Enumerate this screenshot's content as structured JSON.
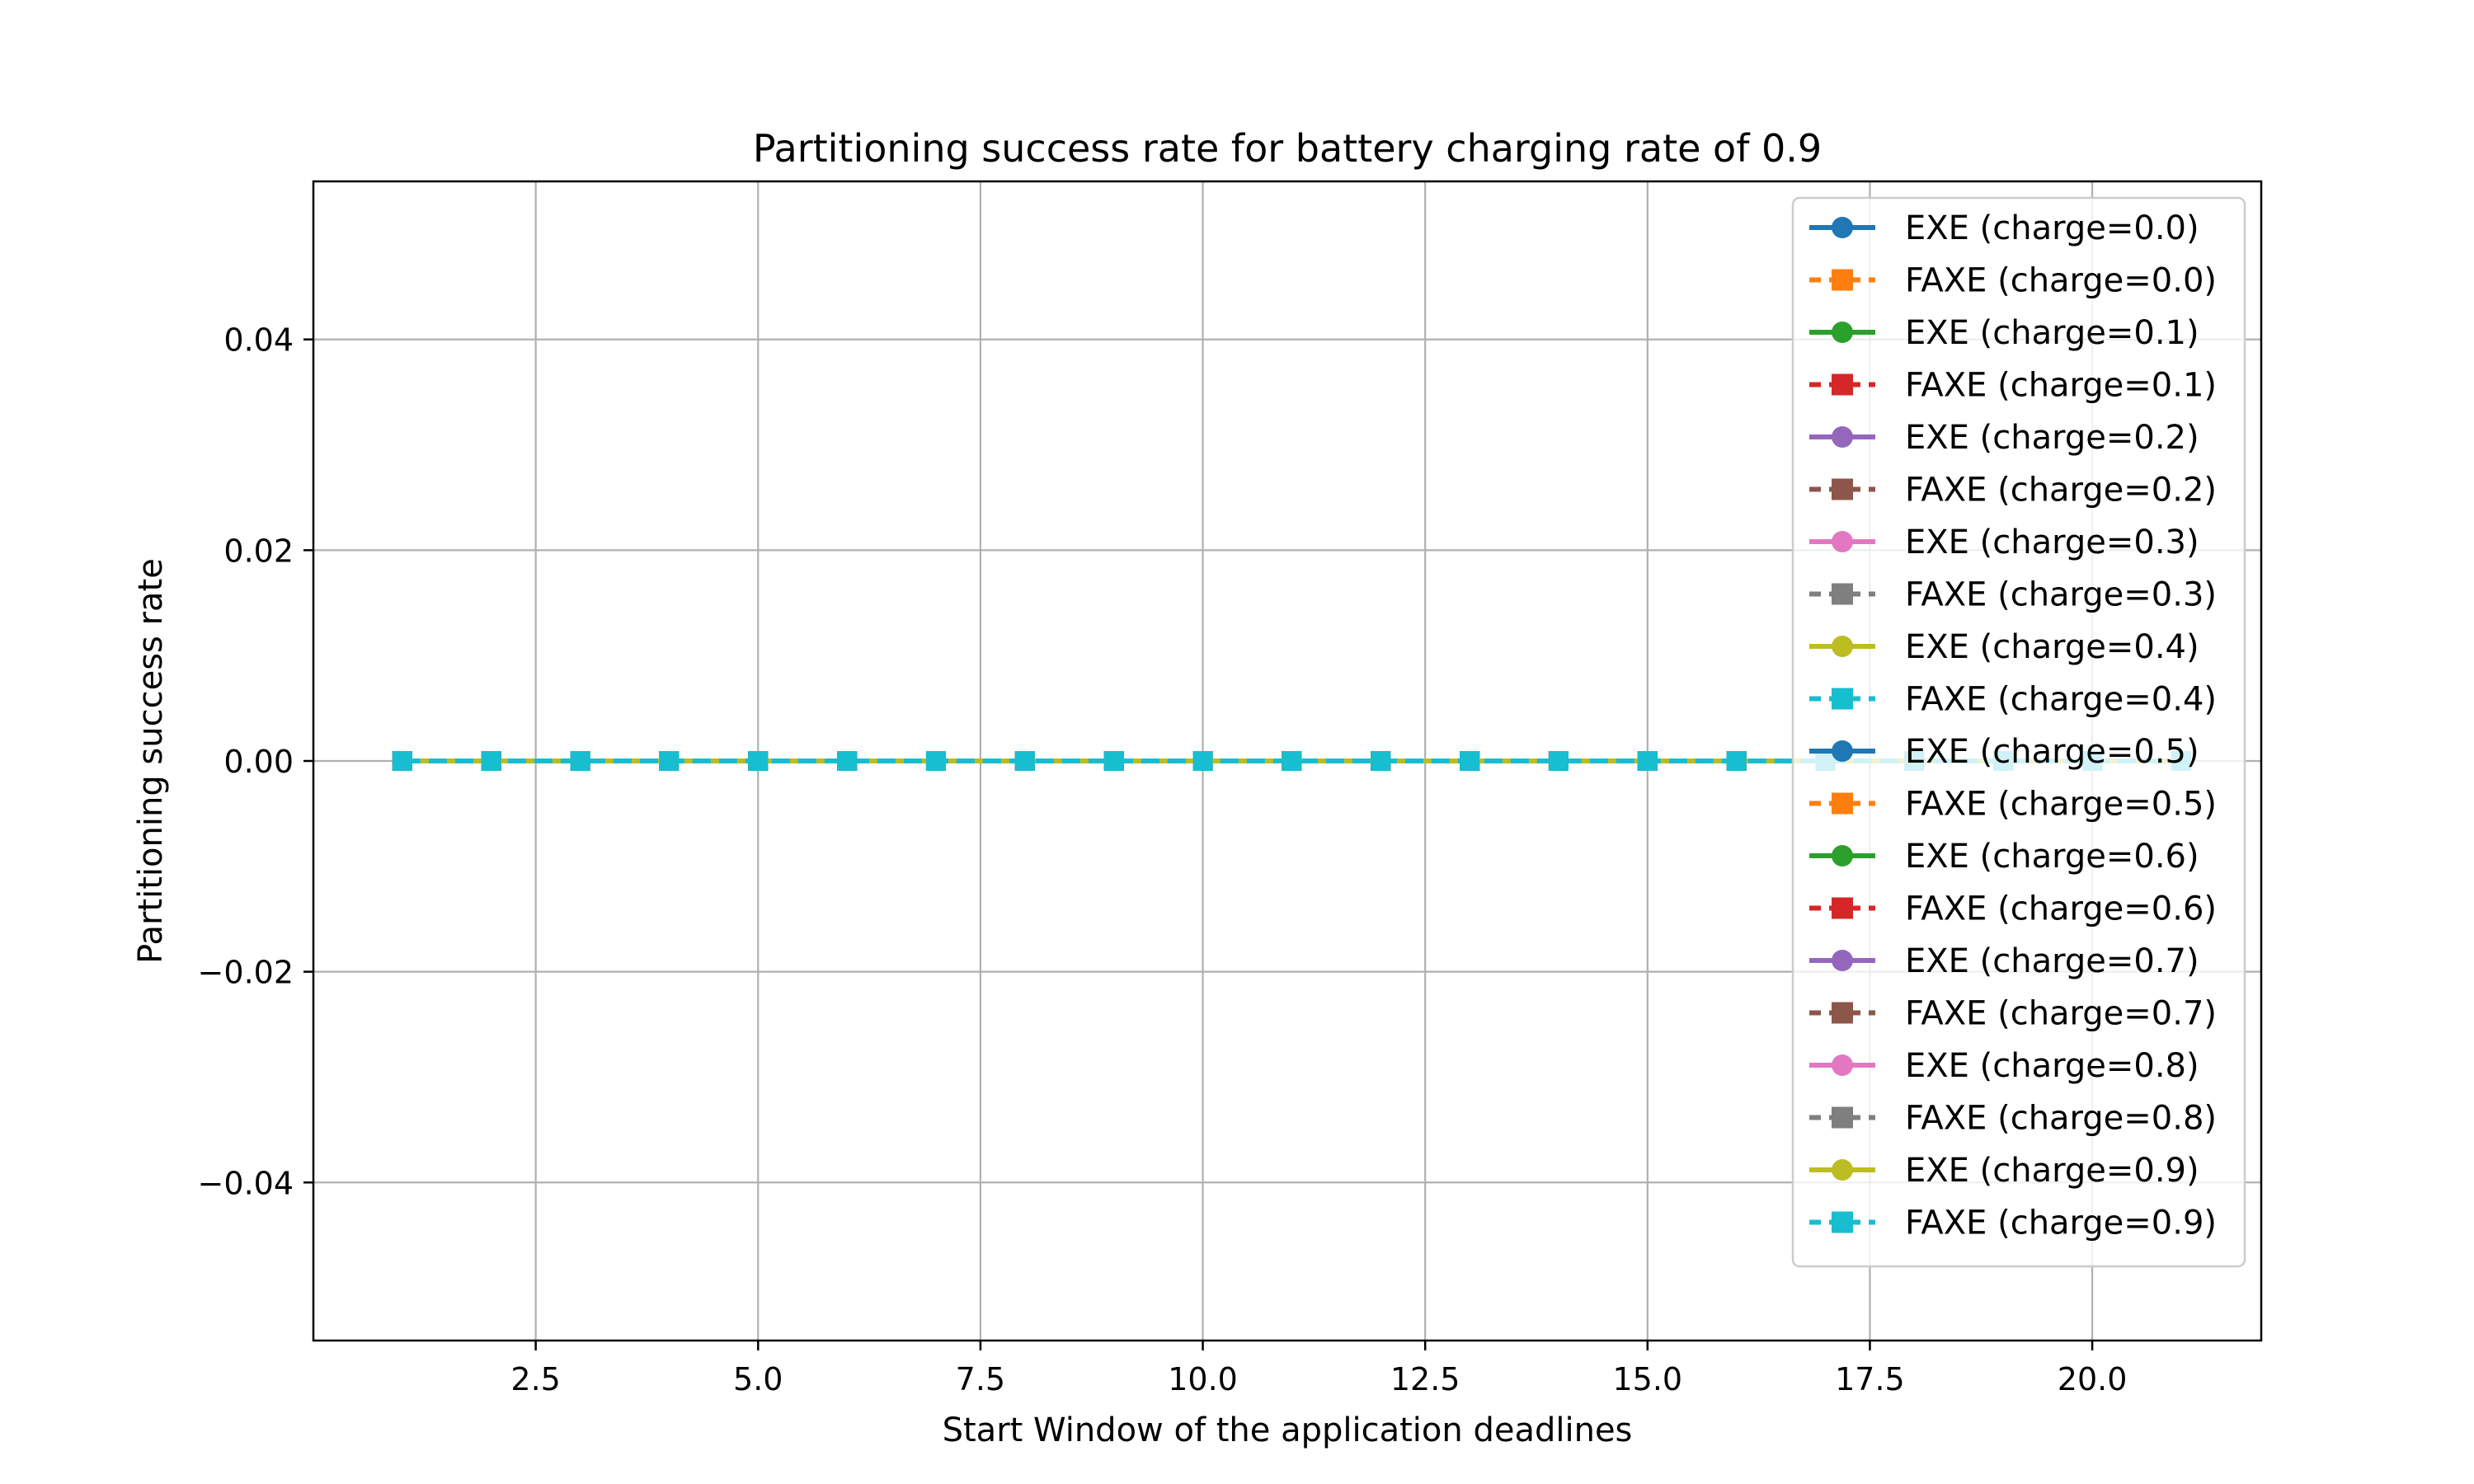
{
  "chart_data": {
    "type": "line",
    "title": "Partitioning success rate for battery charging rate of 0.9",
    "xlabel": "Start Window of the application deadlines",
    "ylabel": "Partitioning success rate",
    "xlim": [
      0.0,
      21.9
    ],
    "ylim": [
      -0.055,
      0.055
    ],
    "xticks": [
      2.5,
      5.0,
      7.5,
      10.0,
      12.5,
      15.0,
      17.5,
      20.0
    ],
    "xtick_labels": [
      "2.5",
      "5.0",
      "7.5",
      "10.0",
      "12.5",
      "15.0",
      "17.5",
      "20.0"
    ],
    "yticks": [
      -0.04,
      -0.02,
      0.0,
      0.02,
      0.04
    ],
    "ytick_labels": [
      "−0.04",
      "−0.02",
      "0.00",
      "0.02",
      "0.04"
    ],
    "grid": true,
    "legend_position": "top-right",
    "x": [
      1,
      2,
      3,
      4,
      5,
      6,
      7,
      8,
      9,
      10,
      11,
      12,
      13,
      14,
      15,
      16,
      17,
      18,
      19,
      20,
      21
    ],
    "series": [
      {
        "name": "EXE (charge=0.0)",
        "color": "#1f77b4",
        "marker": "circle",
        "linestyle": "solid",
        "values": [
          0,
          0,
          0,
          0,
          0,
          0,
          0,
          0,
          0,
          0,
          0,
          0,
          0,
          0,
          0,
          0,
          0,
          0,
          0,
          0,
          0
        ]
      },
      {
        "name": "FAXE (charge=0.0)",
        "color": "#ff7f0e",
        "marker": "square",
        "linestyle": "dashed",
        "values": [
          0,
          0,
          0,
          0,
          0,
          0,
          0,
          0,
          0,
          0,
          0,
          0,
          0,
          0,
          0,
          0,
          0,
          0,
          0,
          0,
          0
        ]
      },
      {
        "name": "EXE (charge=0.1)",
        "color": "#2ca02c",
        "marker": "circle",
        "linestyle": "solid",
        "values": [
          0,
          0,
          0,
          0,
          0,
          0,
          0,
          0,
          0,
          0,
          0,
          0,
          0,
          0,
          0,
          0,
          0,
          0,
          0,
          0,
          0
        ]
      },
      {
        "name": "FAXE (charge=0.1)",
        "color": "#d62728",
        "marker": "square",
        "linestyle": "dashed",
        "values": [
          0,
          0,
          0,
          0,
          0,
          0,
          0,
          0,
          0,
          0,
          0,
          0,
          0,
          0,
          0,
          0,
          0,
          0,
          0,
          0,
          0
        ]
      },
      {
        "name": "EXE (charge=0.2)",
        "color": "#9467bd",
        "marker": "circle",
        "linestyle": "solid",
        "values": [
          0,
          0,
          0,
          0,
          0,
          0,
          0,
          0,
          0,
          0,
          0,
          0,
          0,
          0,
          0,
          0,
          0,
          0,
          0,
          0,
          0
        ]
      },
      {
        "name": "FAXE (charge=0.2)",
        "color": "#8c564b",
        "marker": "square",
        "linestyle": "dashed",
        "values": [
          0,
          0,
          0,
          0,
          0,
          0,
          0,
          0,
          0,
          0,
          0,
          0,
          0,
          0,
          0,
          0,
          0,
          0,
          0,
          0,
          0
        ]
      },
      {
        "name": "EXE (charge=0.3)",
        "color": "#e377c2",
        "marker": "circle",
        "linestyle": "solid",
        "values": [
          0,
          0,
          0,
          0,
          0,
          0,
          0,
          0,
          0,
          0,
          0,
          0,
          0,
          0,
          0,
          0,
          0,
          0,
          0,
          0,
          0
        ]
      },
      {
        "name": "FAXE (charge=0.3)",
        "color": "#7f7f7f",
        "marker": "square",
        "linestyle": "dashed",
        "values": [
          0,
          0,
          0,
          0,
          0,
          0,
          0,
          0,
          0,
          0,
          0,
          0,
          0,
          0,
          0,
          0,
          0,
          0,
          0,
          0,
          0
        ]
      },
      {
        "name": "EXE (charge=0.4)",
        "color": "#bcbd22",
        "marker": "circle",
        "linestyle": "solid",
        "values": [
          0,
          0,
          0,
          0,
          0,
          0,
          0,
          0,
          0,
          0,
          0,
          0,
          0,
          0,
          0,
          0,
          0,
          0,
          0,
          0,
          0
        ]
      },
      {
        "name": "FAXE (charge=0.4)",
        "color": "#17becf",
        "marker": "square",
        "linestyle": "dashed",
        "values": [
          0,
          0,
          0,
          0,
          0,
          0,
          0,
          0,
          0,
          0,
          0,
          0,
          0,
          0,
          0,
          0,
          0,
          0,
          0,
          0,
          0
        ]
      },
      {
        "name": "EXE (charge=0.5)",
        "color": "#1f77b4",
        "marker": "circle",
        "linestyle": "solid",
        "values": [
          0,
          0,
          0,
          0,
          0,
          0,
          0,
          0,
          0,
          0,
          0,
          0,
          0,
          0,
          0,
          0,
          0,
          0,
          0,
          0,
          0
        ]
      },
      {
        "name": "FAXE (charge=0.5)",
        "color": "#ff7f0e",
        "marker": "square",
        "linestyle": "dashed",
        "values": [
          0,
          0,
          0,
          0,
          0,
          0,
          0,
          0,
          0,
          0,
          0,
          0,
          0,
          0,
          0,
          0,
          0,
          0,
          0,
          0,
          0
        ]
      },
      {
        "name": "EXE (charge=0.6)",
        "color": "#2ca02c",
        "marker": "circle",
        "linestyle": "solid",
        "values": [
          0,
          0,
          0,
          0,
          0,
          0,
          0,
          0,
          0,
          0,
          0,
          0,
          0,
          0,
          0,
          0,
          0,
          0,
          0,
          0,
          0
        ]
      },
      {
        "name": "FAXE (charge=0.6)",
        "color": "#d62728",
        "marker": "square",
        "linestyle": "dashed",
        "values": [
          0,
          0,
          0,
          0,
          0,
          0,
          0,
          0,
          0,
          0,
          0,
          0,
          0,
          0,
          0,
          0,
          0,
          0,
          0,
          0,
          0
        ]
      },
      {
        "name": "EXE (charge=0.7)",
        "color": "#9467bd",
        "marker": "circle",
        "linestyle": "solid",
        "values": [
          0,
          0,
          0,
          0,
          0,
          0,
          0,
          0,
          0,
          0,
          0,
          0,
          0,
          0,
          0,
          0,
          0,
          0,
          0,
          0,
          0
        ]
      },
      {
        "name": "FAXE (charge=0.7)",
        "color": "#8c564b",
        "marker": "square",
        "linestyle": "dashed",
        "values": [
          0,
          0,
          0,
          0,
          0,
          0,
          0,
          0,
          0,
          0,
          0,
          0,
          0,
          0,
          0,
          0,
          0,
          0,
          0,
          0,
          0
        ]
      },
      {
        "name": "EXE (charge=0.8)",
        "color": "#e377c2",
        "marker": "circle",
        "linestyle": "solid",
        "values": [
          0,
          0,
          0,
          0,
          0,
          0,
          0,
          0,
          0,
          0,
          0,
          0,
          0,
          0,
          0,
          0,
          0,
          0,
          0,
          0,
          0
        ]
      },
      {
        "name": "FAXE (charge=0.8)",
        "color": "#7f7f7f",
        "marker": "square",
        "linestyle": "dashed",
        "values": [
          0,
          0,
          0,
          0,
          0,
          0,
          0,
          0,
          0,
          0,
          0,
          0,
          0,
          0,
          0,
          0,
          0,
          0,
          0,
          0,
          0
        ]
      },
      {
        "name": "EXE (charge=0.9)",
        "color": "#bcbd22",
        "marker": "circle",
        "linestyle": "solid",
        "values": [
          0,
          0,
          0,
          0,
          0,
          0,
          0,
          0,
          0,
          0,
          0,
          0,
          0,
          0,
          0,
          0,
          0,
          0,
          0,
          0,
          0
        ]
      },
      {
        "name": "FAXE (charge=0.9)",
        "color": "#17becf",
        "marker": "square",
        "linestyle": "dashed",
        "values": [
          0,
          0,
          0,
          0,
          0,
          0,
          0,
          0,
          0,
          0,
          0,
          0,
          0,
          0,
          0,
          0,
          0,
          0,
          0,
          0,
          0
        ]
      }
    ]
  }
}
